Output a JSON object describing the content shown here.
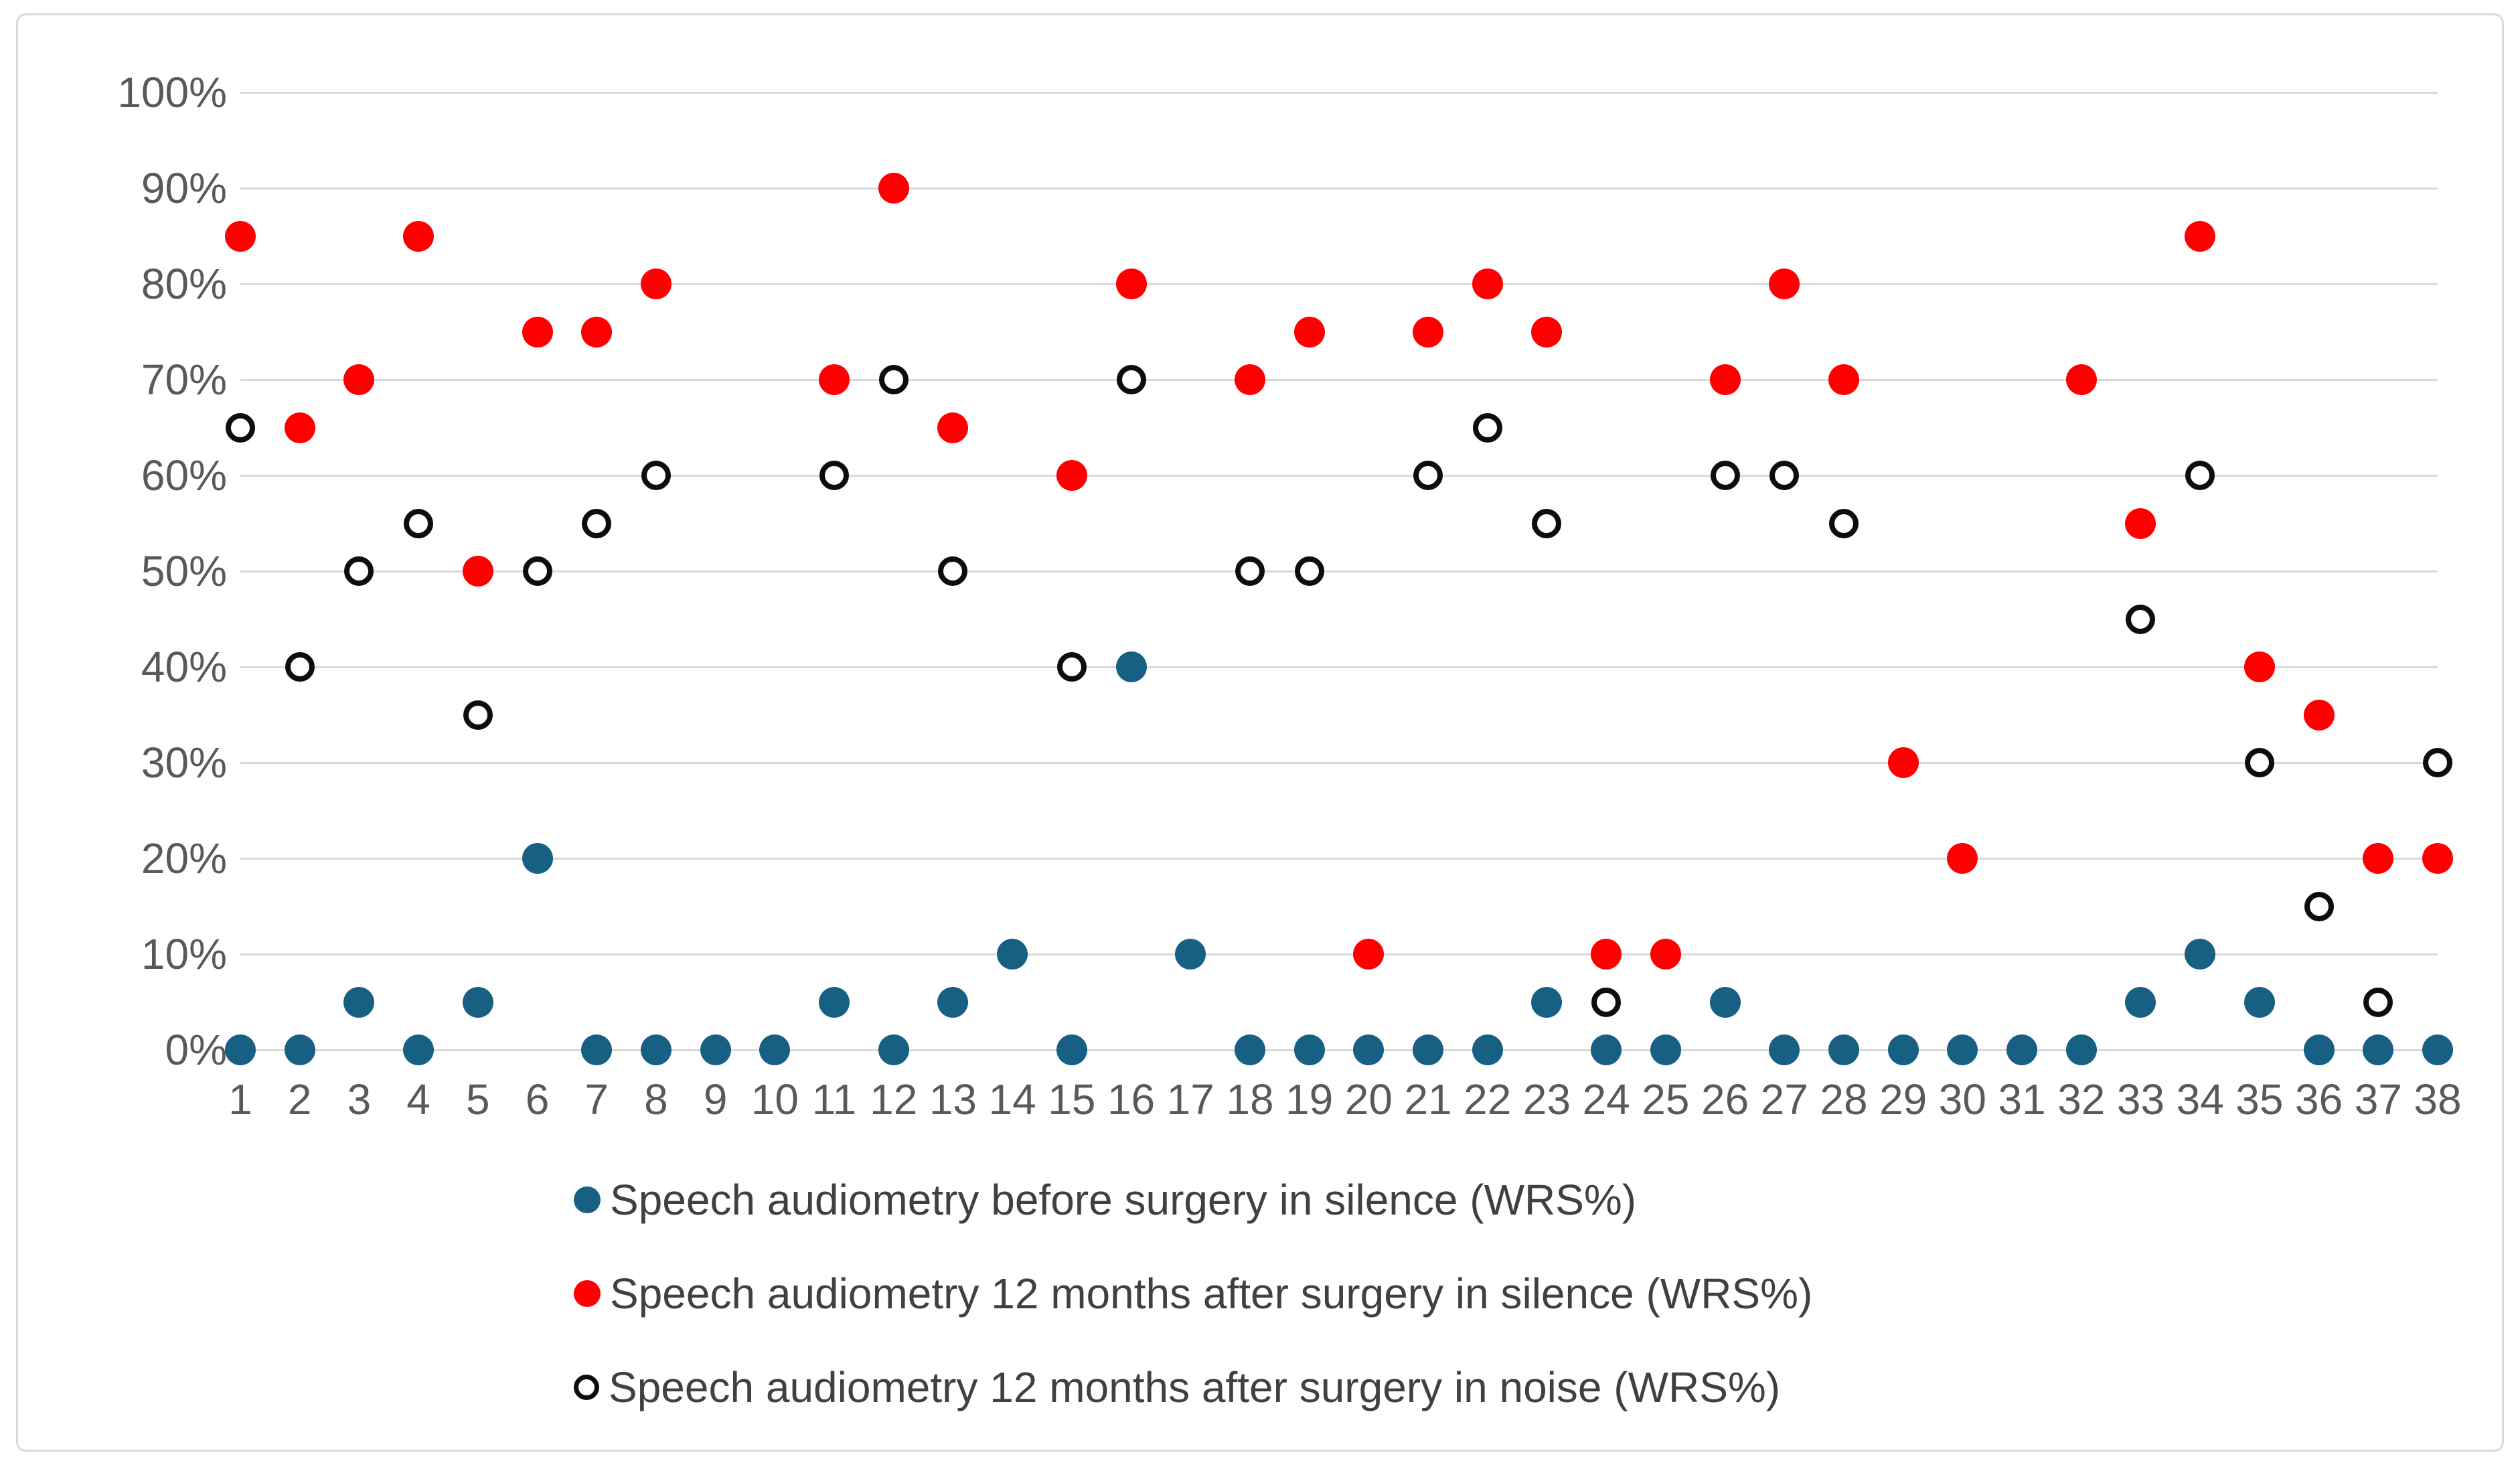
{
  "chart": {
    "background": "#FFFFFF",
    "frame_border_color": "#D9D9D9",
    "gridline_color": "#D9D9D9",
    "axis_label_color": "#595959",
    "legend_text_color": "#404040",
    "ring_stroke_color": "#0D0D0D"
  },
  "chart_data": {
    "type": "scatter",
    "title": "",
    "xlabel": "",
    "ylabel": "",
    "categories": [
      "1",
      "2",
      "3",
      "4",
      "5",
      "6",
      "7",
      "8",
      "9",
      "10",
      "11",
      "12",
      "13",
      "14",
      "15",
      "16",
      "17",
      "18",
      "19",
      "20",
      "21",
      "22",
      "23",
      "24",
      "25",
      "26",
      "27",
      "28",
      "29",
      "30",
      "31",
      "32",
      "33",
      "34",
      "35",
      "36",
      "37",
      "38"
    ],
    "ylim": [
      0,
      100
    ],
    "ytick_step": 10,
    "ytick_labels": [
      "0%",
      "10%",
      "20%",
      "30%",
      "40%",
      "50%",
      "60%",
      "70%",
      "80%",
      "90%",
      "100%"
    ],
    "grid": "horizontal-only",
    "legend_position": "bottom-left",
    "series": [
      {
        "name": "Speech audiometry before surgery in silence (WRS%)",
        "marker": "filled-circle",
        "color": "#176083",
        "values": [
          0,
          0,
          5,
          0,
          5,
          20,
          0,
          0,
          0,
          0,
          5,
          0,
          5,
          10,
          0,
          40,
          10,
          0,
          0,
          0,
          0,
          0,
          5,
          0,
          0,
          5,
          0,
          0,
          0,
          0,
          0,
          0,
          5,
          10,
          5,
          0,
          0,
          0
        ]
      },
      {
        "name": "Speech audiometry 12 months after surgery in silence (WRS%)",
        "marker": "filled-circle",
        "color": "#FF0000",
        "values": [
          85,
          65,
          70,
          85,
          50,
          75,
          75,
          80,
          null,
          null,
          70,
          90,
          65,
          null,
          60,
          80,
          null,
          70,
          75,
          10,
          75,
          80,
          75,
          10,
          10,
          70,
          80,
          70,
          30,
          20,
          null,
          70,
          55,
          85,
          40,
          35,
          20,
          20
        ]
      },
      {
        "name": "Speech audiometry 12 months after surgery in noise (WRS%)",
        "marker": "hollow-circle",
        "color": "#0D0D0D",
        "values": [
          65,
          40,
          50,
          55,
          35,
          50,
          55,
          60,
          null,
          null,
          60,
          70,
          50,
          null,
          40,
          70,
          null,
          50,
          50,
          null,
          60,
          65,
          55,
          5,
          null,
          60,
          60,
          55,
          null,
          null,
          null,
          null,
          45,
          60,
          30,
          15,
          5,
          30
        ]
      }
    ]
  }
}
